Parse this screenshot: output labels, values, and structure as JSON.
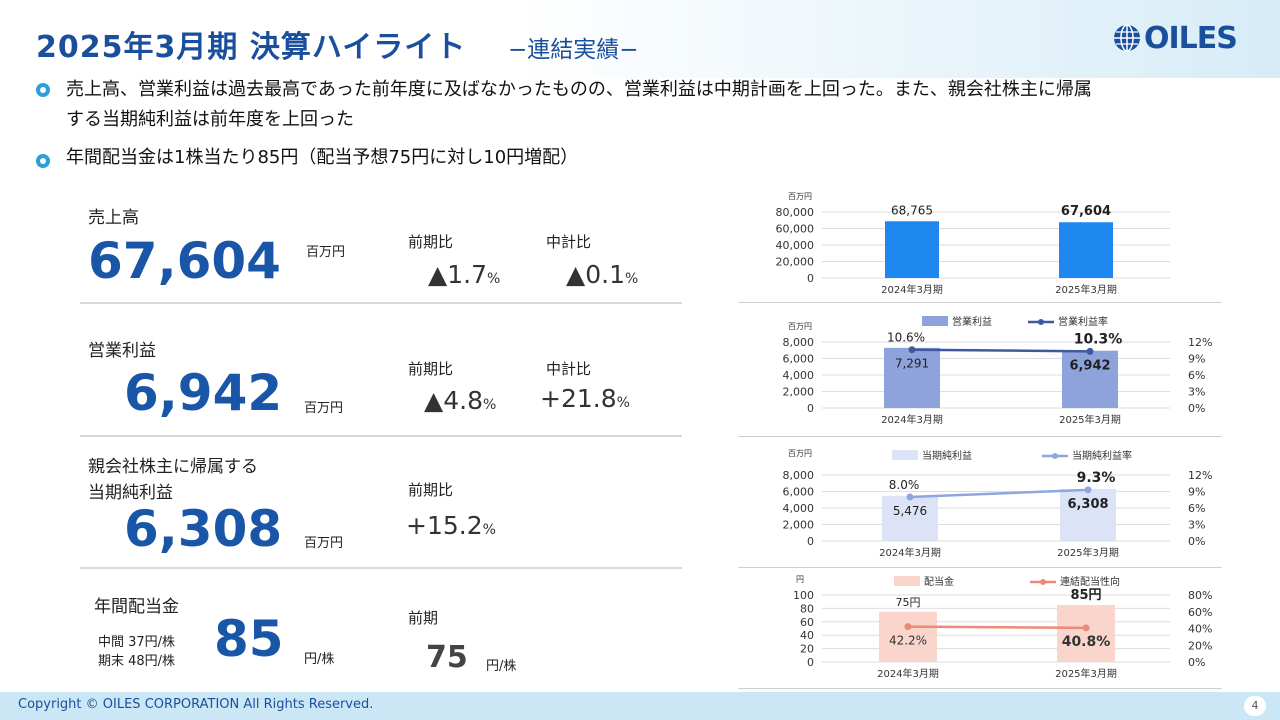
{
  "header": {
    "title": "2025年3月期 決算ハイライト",
    "subtitle": "−連結実績−",
    "logo_text": "OILES",
    "brand_color": "#1a4f9c"
  },
  "bullets": [
    {
      "line1": "売上高、営業利益は過去最高であった前年度に及ばなかったものの、営業利益は中期計画を上回った。また、親会社株主に帰属",
      "line2": "する当期純利益は前年度を上回った"
    },
    {
      "line1": "年間配当金は1株当たり85円（配当予想75円に対し10円増配）"
    }
  ],
  "metrics": {
    "sales": {
      "label": "売上高",
      "value": "67,604",
      "unit": "百万円",
      "yoy_label": "前期比",
      "yoy_value": "▲1.7",
      "plan_label": "中計比",
      "plan_value": "▲0.1",
      "pct": "%"
    },
    "operating": {
      "label": "営業利益",
      "value": "6,942",
      "unit": "百万円",
      "yoy_label": "前期比",
      "yoy_value": "▲4.8",
      "plan_label": "中計比",
      "plan_value": "+21.8",
      "pct": "%"
    },
    "net": {
      "label_line1": "親会社株主に帰属する",
      "label_line2": "当期純利益",
      "value": "6,308",
      "unit": "百万円",
      "yoy_label": "前期比",
      "yoy_value": "+15.2",
      "pct": "%"
    },
    "dividend": {
      "label": "年間配当金",
      "interim": "中間 37円/株",
      "year_end": "期末 48円/株",
      "value": "85",
      "unit": "円/株",
      "prev_label": "前期",
      "prev_value": "75",
      "prev_unit": "円/株"
    }
  },
  "chart_data": [
    {
      "type": "bar",
      "title": "売上高",
      "unit_label": "百万円",
      "categories": [
        "2024年3月期",
        "2025年3月期"
      ],
      "values": [
        68765,
        67604
      ],
      "value_labels": [
        "68,765",
        "67,604"
      ],
      "ylim": [
        0,
        80000
      ],
      "yticks": [
        "0",
        "20,000",
        "40,000",
        "60,000",
        "80,000"
      ],
      "color": "#1e88f0"
    },
    {
      "type": "bar",
      "title": "営業利益",
      "unit_label": "百万円",
      "categories": [
        "2024年3月期",
        "2025年3月期"
      ],
      "series": [
        {
          "name": "営業利益",
          "values": [
            7291,
            6942
          ],
          "value_labels": [
            "7,291",
            "6,942"
          ],
          "color": "#8ea2dc"
        },
        {
          "name": "営業利益率",
          "values": [
            10.6,
            10.3
          ],
          "value_labels": [
            "10.6%",
            "10.3%"
          ],
          "color": "#4058a0",
          "axis": "right"
        }
      ],
      "ylim": [
        0,
        8000
      ],
      "yticks": [
        "0",
        "2,000",
        "4,000",
        "6,000",
        "8,000"
      ],
      "y2lim": [
        0,
        12
      ],
      "y2ticks": [
        "0%",
        "3%",
        "6%",
        "9%",
        "12%"
      ]
    },
    {
      "type": "bar",
      "title": "当期純利益",
      "unit_label": "百万円",
      "categories": [
        "2024年3月期",
        "2025年3月期"
      ],
      "series": [
        {
          "name": "当期純利益",
          "values": [
            5476,
            6308
          ],
          "value_labels": [
            "5,476",
            "6,308"
          ],
          "color": "#dde3f6"
        },
        {
          "name": "当期純利益率",
          "values": [
            8.0,
            9.3
          ],
          "value_labels": [
            "8.0%",
            "9.3%"
          ],
          "color": "#8ea6e0",
          "axis": "right"
        }
      ],
      "ylim": [
        0,
        8000
      ],
      "yticks": [
        "0",
        "2,000",
        "4,000",
        "6,000",
        "8,000"
      ],
      "y2lim": [
        0,
        12
      ],
      "y2ticks": [
        "0%",
        "3%",
        "6%",
        "9%",
        "12%"
      ]
    },
    {
      "type": "bar",
      "title": "配当金",
      "unit_label": "円",
      "categories": [
        "2024年3月期",
        "2025年3月期"
      ],
      "series": [
        {
          "name": "配当金",
          "values": [
            75,
            85
          ],
          "value_labels": [
            "75円",
            "85円"
          ],
          "color": "#f9d5cc"
        },
        {
          "name": "連結配当性向",
          "values": [
            42.2,
            40.8
          ],
          "value_labels": [
            "42.2%",
            "40.8%"
          ],
          "color": "#ec8a78",
          "axis": "right"
        }
      ],
      "ylim": [
        0,
        100
      ],
      "yticks": [
        "0",
        "20",
        "40",
        "60",
        "80",
        "100"
      ],
      "y2lim": [
        0,
        80
      ],
      "y2ticks": [
        "0%",
        "20%",
        "40%",
        "60%",
        "80%"
      ]
    }
  ],
  "footer": {
    "copyright": "Copyright © OILES CORPORATION All Rights Reserved.",
    "page": "4"
  }
}
